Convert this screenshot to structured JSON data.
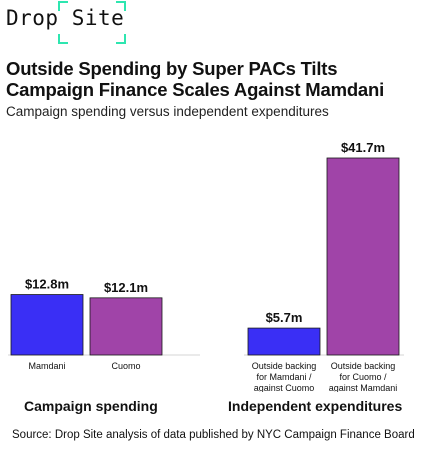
{
  "brand": {
    "logo_text": "Drop Site"
  },
  "title": "Outside Spending by Super PACs Tilts Campaign Finance Scales Against Mamdani",
  "subtitle": "Campaign spending versus independent expenditures",
  "groups": [
    "Campaign spending",
    "Independent expenditures"
  ],
  "source": "Source: Drop Site analysis of data published by NYC Campaign Finance Board",
  "colors": {
    "mamdani_blue": "#3a2ff5",
    "cuomo_purple": "#a044a8",
    "logo_accent": "#2ee6b0"
  },
  "chart_data": {
    "type": "bar",
    "title": "Outside Spending by Super PACs Tilts Campaign Finance Scales Against Mamdani",
    "subtitle": "Campaign spending versus independent expenditures",
    "unit": "$m",
    "ylim": [
      0,
      41.7
    ],
    "grid": false,
    "categories": [
      [
        "Mamdani"
      ],
      [
        "Cuomo"
      ],
      [
        "Outside backing",
        "for Mamdani /",
        "against Cuomo"
      ],
      [
        "Outside backing",
        "for Cuomo /",
        "against Mamdani"
      ]
    ],
    "values": [
      12.8,
      12.1,
      5.7,
      41.7
    ],
    "value_labels": [
      "$12.8m",
      "$12.1m",
      "$5.7m",
      "$41.7m"
    ],
    "bar_colors": [
      "#3a2ff5",
      "#a044a8",
      "#3a2ff5",
      "#a044a8"
    ],
    "group_of_bar": [
      0,
      0,
      1,
      1
    ]
  }
}
